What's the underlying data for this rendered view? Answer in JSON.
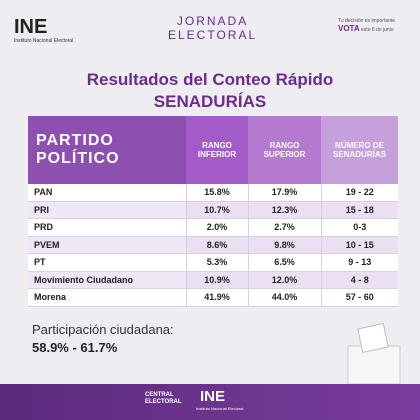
{
  "header": {
    "ine_logo": "INE",
    "ine_name": "Instituto Nacional Electoral",
    "jornada_line1": "JORNADA",
    "jornada_line2": "ELECTORAL",
    "slogan_line1": "Tu decisión es importante",
    "slogan_vota": "VOTA",
    "slogan_date": "este 6 de junio"
  },
  "title": "Resultados del Conteo Rápido",
  "subtitle": "SENADURÍAS",
  "table": {
    "headers": [
      "PARTIDO POLÍTICO",
      "RANGO INFERIOR",
      "RANGO SUPERIOR",
      "NÚMERO DE SENADURÍAS"
    ],
    "rows": [
      [
        "PAN",
        "15.8%",
        "17.9%",
        "19 - 22"
      ],
      [
        "PRI",
        "10.7%",
        "12.3%",
        "15 - 18"
      ],
      [
        "PRD",
        "2.0%",
        "2.7%",
        "0-3"
      ],
      [
        "PVEM",
        "8.6%",
        "9.8%",
        "10 - 15"
      ],
      [
        "PT",
        "5.3%",
        "6.5%",
        "9 - 13"
      ],
      [
        "Movimiento Ciudadano",
        "10.9%",
        "12.0%",
        "4 - 8"
      ],
      [
        "Morena",
        "41.9%",
        "44.0%",
        "57 - 60"
      ]
    ]
  },
  "participation": {
    "label": "Participación ciudadana:",
    "value": "58.9% - 61.7%"
  },
  "footer": {
    "central_line1": "CENTRAL",
    "central_line2": "ELECTORAL",
    "ine_logo": "INE",
    "ine_name": "Instituto Nacional Electoral"
  }
}
